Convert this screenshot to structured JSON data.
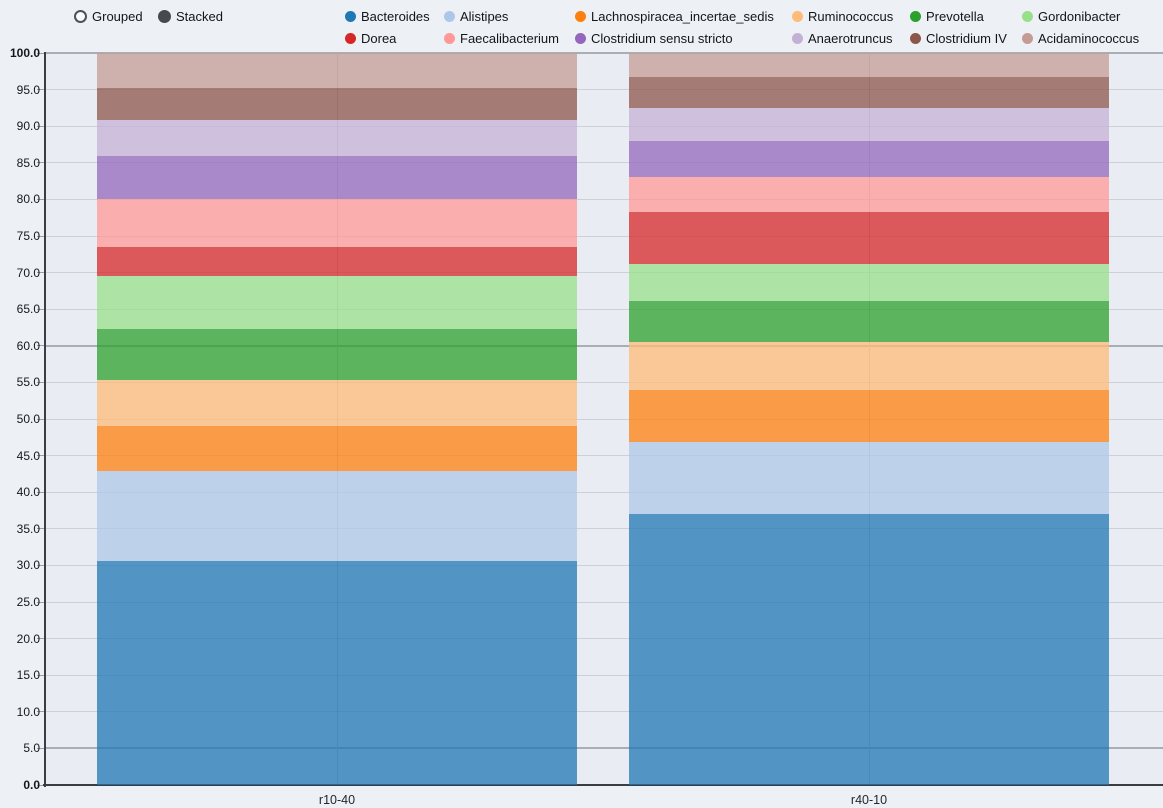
{
  "controls": {
    "mode_options": [
      {
        "label": "Grouped",
        "selected": false
      },
      {
        "label": "Stacked",
        "selected": true
      }
    ]
  },
  "chart_data": {
    "type": "bar",
    "stacked": true,
    "orientation": "vertical",
    "categories": [
      "r10-40",
      "r40-10"
    ],
    "series": [
      {
        "name": "Bacteroides",
        "color": "#1f77b4",
        "values": [
          30.6,
          37.0
        ]
      },
      {
        "name": "Alistipes",
        "color": "#aec7e8",
        "values": [
          12.3,
          9.9
        ]
      },
      {
        "name": "Lachnospiracea_incertae_sedis",
        "color": "#ff7f0e",
        "values": [
          6.1,
          7.0
        ]
      },
      {
        "name": "Ruminococcus",
        "color": "#ffbb78",
        "values": [
          6.3,
          6.6
        ]
      },
      {
        "name": "Prevotella",
        "color": "#2ca02c",
        "values": [
          7.0,
          5.6
        ]
      },
      {
        "name": "Gordonibacter",
        "color": "#98df8a",
        "values": [
          7.2,
          5.1
        ]
      },
      {
        "name": "Dorea",
        "color": "#d62728",
        "values": [
          4.0,
          7.1
        ]
      },
      {
        "name": "Faecalibacterium",
        "color": "#ff9896",
        "values": [
          6.5,
          4.8
        ]
      },
      {
        "name": "Clostridium sensu stricto",
        "color": "#9467bd",
        "values": [
          6.0,
          4.9
        ]
      },
      {
        "name": "Anaerotruncus",
        "color": "#c5b0d5",
        "values": [
          4.8,
          4.5
        ]
      },
      {
        "name": "Clostridium IV",
        "color": "#8c564b",
        "values": [
          4.4,
          4.2
        ]
      },
      {
        "name": "Acidaminococcus",
        "color": "#c49c94",
        "values": [
          4.8,
          3.3
        ]
      }
    ],
    "ylim": [
      0,
      100
    ],
    "y_tick_step": 5,
    "y_tick_labels": [
      "0.0",
      "5.0",
      "10.0",
      "15.0",
      "20.0",
      "25.0",
      "30.0",
      "35.0",
      "40.0",
      "45.0",
      "50.0",
      "55.0",
      "60.0",
      "65.0",
      "70.0",
      "75.0",
      "80.0",
      "85.0",
      "90.0",
      "95.0",
      "100.0"
    ],
    "bold_tick_labels": [
      "0.0",
      "100.0"
    ],
    "emphasized_gridlines": [
      5,
      60,
      100
    ],
    "legend_position": "top",
    "grid": true,
    "bar_opacity": 0.75
  },
  "style": {
    "background": "#edf0f5",
    "plot_background": "#e9edf3",
    "axis_color": "#3a3e44",
    "gridline_color": "#ccd1d9",
    "emphasized_gridline_color": "#a9aeb6",
    "tick_label_color": "#16181c",
    "legend_text_color": "#131518",
    "radio_color": "#47494d"
  }
}
